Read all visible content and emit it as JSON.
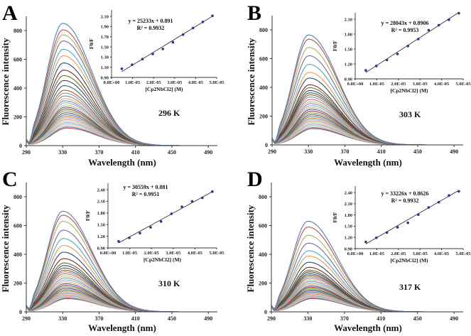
{
  "figure": {
    "palette": [
      "#4F81BD",
      "#C0504D",
      "#9BBB59",
      "#8064A2",
      "#4BACC6",
      "#F79646",
      "#2C4D75",
      "#772C2A",
      "#5F7530",
      "#4D3B62",
      "#276A7C",
      "#B65708",
      "#729ACA",
      "#CD7371",
      "#AFC97A",
      "#9983B5",
      "#6FBDD1",
      "#F9AB6B",
      "#3A679C",
      "#9E3B38",
      "#7E9C40",
      "#664F83",
      "#358EA6",
      "#E07A20",
      "#95B3D7",
      "#D99694",
      "#C3D69B",
      "#B2A2C7",
      "#93CDDD",
      "#FAC090"
    ]
  },
  "chart_data": [
    {
      "type": "line",
      "panel": "A",
      "temperature_label": "296 K",
      "xlabel": "Wavelength (nm)",
      "ylabel": "Fluorescence intensity",
      "xlim": [
        290,
        500
      ],
      "ylim": [
        0,
        900
      ],
      "xticks": [
        "290",
        "330",
        "370",
        "410",
        "450",
        "490"
      ],
      "yticks": [
        "0",
        "200",
        "400",
        "600",
        "800"
      ],
      "peak_wavelength": 330,
      "series_peak_intensities": [
        850,
        805,
        770,
        728,
        670,
        625,
        575,
        525,
        487,
        453,
        417,
        385,
        365,
        345,
        327,
        312,
        298,
        282,
        268,
        255,
        242,
        228,
        215,
        203,
        192,
        181,
        170,
        160,
        150,
        140,
        130,
        122
      ],
      "inset": {
        "type": "scatter",
        "xlabel": "[Cp2NbCl2] (M)",
        "ylabel": "F0/F",
        "xlim": [
          0,
          5e-05
        ],
        "ylim": [
          0.9,
          2.2
        ],
        "xticks": [
          "0.0E+00",
          "1.0E-05",
          "2.0E-05",
          "3.0E-05",
          "4.0E-05",
          "5.0E-05"
        ],
        "yticks": [
          "0.90",
          "1.10",
          "1.30",
          "1.50",
          "1.70",
          "1.90",
          "2.10"
        ],
        "x": [
          4.9e-06,
          9.8e-06,
          1.47e-05,
          1.96e-05,
          2.44e-05,
          2.92e-05,
          3.4e-05,
          3.87e-05,
          4.34e-05,
          4.8e-05
        ],
        "y": [
          1.07,
          1.15,
          1.26,
          1.36,
          1.46,
          1.59,
          1.74,
          1.87,
          1.99,
          2.11
        ],
        "fit": {
          "slope": 25233,
          "intercept": 0.891
        },
        "equation": "y = 25233x + 0.891",
        "r2": "R² = 0.9932"
      }
    },
    {
      "type": "line",
      "panel": "B",
      "temperature_label": "303 K",
      "xlabel": "Wavelength (nm)",
      "ylabel": "Fluorescence intensity",
      "xlim": [
        290,
        500
      ],
      "ylim": [
        0,
        900
      ],
      "xticks": [
        "290",
        "330",
        "370",
        "410",
        "450",
        "490"
      ],
      "yticks": [
        "0",
        "200",
        "400",
        "600",
        "800"
      ],
      "peak_wavelength": 330,
      "series_peak_intensities": [
        765,
        735,
        678,
        620,
        560,
        505,
        465,
        418,
        398,
        378,
        362,
        348,
        333,
        316,
        300,
        287,
        273,
        260,
        248,
        235,
        222,
        210,
        198,
        186,
        176,
        166,
        156,
        146,
        137,
        128,
        120,
        113
      ],
      "inset": {
        "type": "scatter",
        "xlabel": "[Cp2NbCl2] (M)",
        "ylabel": "F0/F",
        "xlim": [
          0,
          5e-05
        ],
        "ylim": [
          0.9,
          2.3
        ],
        "xticks": [
          "0.0E+00",
          "1.0E-05",
          "2.0E-05",
          "3.0E-05",
          "4.0E-05",
          "5.0E-05"
        ],
        "yticks": [
          "0.90",
          "1.20",
          "1.50",
          "1.80",
          "2.10"
        ],
        "x": [
          4.9e-06,
          9.8e-06,
          1.47e-05,
          1.96e-05,
          2.44e-05,
          2.92e-05,
          3.4e-05,
          3.87e-05,
          4.34e-05,
          4.8e-05
        ],
        "y": [
          1.07,
          1.16,
          1.28,
          1.4,
          1.56,
          1.7,
          1.88,
          1.98,
          2.09,
          2.22
        ],
        "fit": {
          "slope": 28043,
          "intercept": 0.8906
        },
        "equation": "y = 28043x + 0.8906",
        "r2": "R² = 0.9953"
      }
    },
    {
      "type": "line",
      "panel": "C",
      "temperature_label": "310 K",
      "xlabel": "Wavelength (nm)",
      "ylabel": "Fluorescence intensity",
      "xlim": [
        290,
        500
      ],
      "ylim": [
        0,
        900
      ],
      "xticks": [
        "290",
        "330",
        "370",
        "410",
        "450",
        "490"
      ],
      "yticks": [
        "0",
        "200",
        "400",
        "600",
        "800"
      ],
      "peak_wavelength": 330,
      "series_peak_intensities": [
        700,
        672,
        630,
        568,
        510,
        462,
        415,
        370,
        340,
        322,
        305,
        290,
        278,
        265,
        250,
        236,
        222,
        209,
        196,
        184,
        173,
        163,
        153,
        144,
        135,
        127,
        120,
        113,
        107,
        101,
        96,
        92
      ],
      "inset": {
        "type": "scatter",
        "xlabel": "[Cp2NbCl2] (M)",
        "ylabel": "F0/F",
        "xlim": [
          0,
          5e-05
        ],
        "ylim": [
          0.9,
          2.5
        ],
        "xticks": [
          "0.0E+00",
          "1.0E-05",
          "2.0E-05",
          "3.0E-05",
          "4.0E-05",
          "5.0E-05"
        ],
        "yticks": [
          "0.90",
          "1.20",
          "1.50",
          "1.80",
          "2.10",
          "2.40"
        ],
        "x": [
          4.9e-06,
          9.8e-06,
          1.47e-05,
          1.96e-05,
          2.44e-05,
          2.92e-05,
          3.4e-05,
          3.87e-05,
          4.34e-05,
          4.8e-05
        ],
        "y": [
          1.07,
          1.16,
          1.28,
          1.43,
          1.58,
          1.78,
          1.96,
          2.1,
          2.19,
          2.35
        ],
        "fit": {
          "slope": 30559,
          "intercept": 0.881
        },
        "equation": "y = 30559x + 0.881",
        "r2": "R² = 0.9951"
      }
    },
    {
      "type": "line",
      "panel": "D",
      "temperature_label": "317 K",
      "xlabel": "Wavelength (nm)",
      "ylabel": "Fluorescence intensity",
      "xlim": [
        290,
        500
      ],
      "ylim": [
        0,
        900
      ],
      "xticks": [
        "290",
        "330",
        "370",
        "410",
        "450",
        "490"
      ],
      "yticks": [
        "0",
        "200",
        "400",
        "600",
        "800"
      ],
      "peak_wavelength": 330,
      "series_peak_intensities": [
        630,
        590,
        533,
        478,
        425,
        388,
        345,
        310,
        290,
        278,
        265,
        255,
        245,
        235,
        223,
        212,
        200,
        190,
        180,
        171,
        162,
        153,
        145,
        137,
        130,
        123,
        117,
        111,
        106,
        101,
        96,
        92
      ],
      "inset": {
        "type": "scatter",
        "xlabel": "[Cp2NbCl2] (M)",
        "ylabel": "F0/F",
        "xlim": [
          0,
          5e-05
        ],
        "ylim": [
          0.9,
          2.5
        ],
        "xticks": [
          "0.0E+00",
          "1.0E-05",
          "2.0E-05",
          "3.0E-05",
          "4.0E-05",
          "5.0E-05"
        ],
        "yticks": [
          "0.90",
          "1.20",
          "1.50",
          "1.80",
          "2.10",
          "2.40"
        ],
        "x": [
          4.9e-06,
          9.8e-06,
          1.47e-05,
          1.96e-05,
          2.44e-05,
          2.92e-05,
          3.4e-05,
          3.87e-05,
          4.34e-05,
          4.8e-05
        ],
        "y": [
          1.08,
          1.19,
          1.33,
          1.47,
          1.59,
          1.81,
          2.0,
          2.14,
          2.32,
          2.43
        ],
        "fit": {
          "slope": 33226,
          "intercept": 0.8626
        },
        "equation": "y = 33226x + 0.8626",
        "r2": "R² = 0.9932"
      }
    }
  ]
}
